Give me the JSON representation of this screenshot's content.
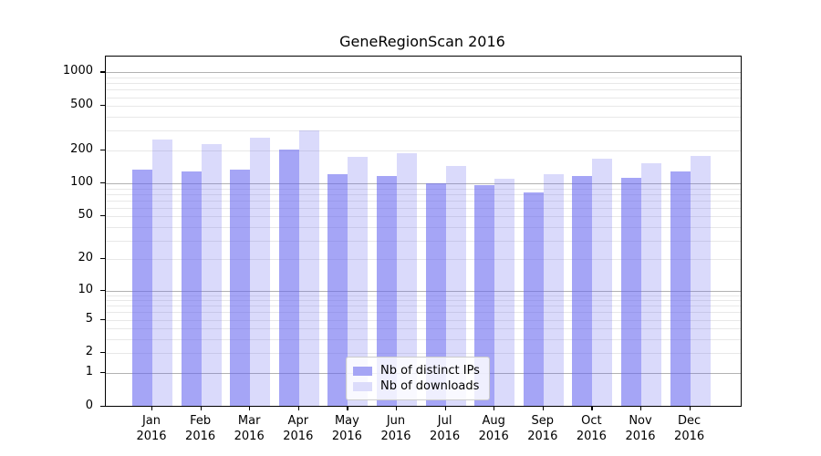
{
  "figure": {
    "background": "#ffffff",
    "text_color": "#000000"
  },
  "chart_data": {
    "type": "bar",
    "title": "GeneRegionScan 2016",
    "categories": [
      "Jan 2016",
      "Feb 2016",
      "Mar 2016",
      "Apr 2016",
      "May 2016",
      "Jun 2016",
      "Jul 2016",
      "Aug 2016",
      "Sep 2016",
      "Oct 2016",
      "Nov 2016",
      "Dec 2016"
    ],
    "series": [
      {
        "name": "Nb of distinct IPs",
        "swatch_color": "#a5a5f5",
        "fill": "rgba(100,100,240,0.58)",
        "values": [
          133,
          127,
          132,
          203,
          122,
          117,
          100,
          96,
          83,
          116,
          112,
          127
        ]
      },
      {
        "name": "Nb of downloads",
        "swatch_color": "#dcdcfb",
        "fill": "rgba(100,100,240,0.24)",
        "values": [
          248,
          225,
          257,
          300,
          173,
          186,
          143,
          110,
          121,
          166,
          153,
          176
        ]
      }
    ],
    "xlabel": "",
    "ylabel": "",
    "y_scale": "log10(1+x)",
    "ylim": [
      0,
      1450
    ],
    "y_tick_labels": [
      1000,
      500,
      200,
      100,
      50,
      20,
      10,
      5,
      2,
      1,
      0
    ],
    "y_major_gridlines": [
      1,
      10,
      100,
      1000
    ],
    "y_minor_gridlines": [
      2,
      3,
      4,
      5,
      6,
      7,
      8,
      9,
      20,
      30,
      40,
      50,
      60,
      70,
      80,
      90,
      200,
      300,
      400,
      500,
      600,
      700,
      800,
      900
    ],
    "grid": true,
    "legend_position": "lower-center-left",
    "colors": {
      "major_grid": "#b2b2b2",
      "minor_grid": "#e8e8e8",
      "spine": "#000000"
    }
  }
}
